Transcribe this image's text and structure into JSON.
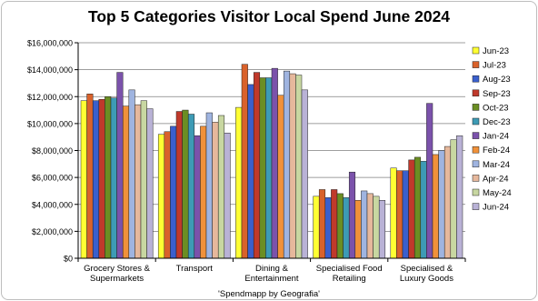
{
  "chart_data": {
    "type": "bar",
    "title": "Top 5 Categories Visitor Local Spend June 2024",
    "source_note": "'Spendmapp by Geografia'",
    "categories": [
      [
        "Grocery Stores &",
        "Supermarkets"
      ],
      [
        "Transport"
      ],
      [
        "Dining &",
        "Entertainment"
      ],
      [
        "Specialised Food",
        "Retailing"
      ],
      [
        "Specialised &",
        "Luxury Goods"
      ]
    ],
    "ylim": [
      0,
      16000000
    ],
    "ytick_step": 2000000,
    "yticks": [
      "$0",
      "$2,000,000",
      "$4,000,000",
      "$6,000,000",
      "$8,000,000",
      "$10,000,000",
      "$12,000,000",
      "$14,000,000",
      "$16,000,000"
    ],
    "grid": true,
    "legend_position": "right",
    "series": [
      {
        "name": "Jun-23",
        "color": "#ffff33",
        "values": [
          11700000,
          9200000,
          11200000,
          4600000,
          6700000
        ]
      },
      {
        "name": "Jul-23",
        "color": "#d9622b",
        "values": [
          12200000,
          9400000,
          14400000,
          5100000,
          6500000
        ]
      },
      {
        "name": "Aug-23",
        "color": "#3a5fcd",
        "values": [
          11700000,
          9800000,
          12900000,
          4500000,
          6500000
        ]
      },
      {
        "name": "Sep-23",
        "color": "#c0392b",
        "values": [
          11800000,
          10900000,
          13800000,
          5100000,
          7300000
        ]
      },
      {
        "name": "Oct-23",
        "color": "#6b8e23",
        "values": [
          12000000,
          11000000,
          13400000,
          4800000,
          7500000
        ]
      },
      {
        "name": "Dec-23",
        "color": "#3d9bb5",
        "values": [
          11900000,
          10700000,
          13400000,
          4500000,
          7200000
        ]
      },
      {
        "name": "Jan-24",
        "color": "#7b52ab",
        "values": [
          13800000,
          9100000,
          14100000,
          6400000,
          11500000
        ]
      },
      {
        "name": "Feb-24",
        "color": "#f0913a",
        "values": [
          11300000,
          9800000,
          12100000,
          4300000,
          7700000
        ]
      },
      {
        "name": "Mar-24",
        "color": "#9fb4e0",
        "values": [
          12500000,
          10800000,
          13900000,
          5000000,
          8000000
        ]
      },
      {
        "name": "Apr-24",
        "color": "#e6b89c",
        "values": [
          11400000,
          10100000,
          13700000,
          4800000,
          8300000
        ]
      },
      {
        "name": "May-24",
        "color": "#c8d7a1",
        "values": [
          11700000,
          10600000,
          13600000,
          4600000,
          8800000
        ]
      },
      {
        "name": "Jun-24",
        "color": "#b9b2d6",
        "values": [
          11100000,
          9300000,
          12500000,
          4300000,
          9100000
        ]
      }
    ],
    "xlabel": "",
    "ylabel": ""
  },
  "colors": {
    "plot_background": "#ffffff",
    "gridline": "#7f7f7f",
    "axis": "#000000",
    "bar_outline": "#222222"
  }
}
